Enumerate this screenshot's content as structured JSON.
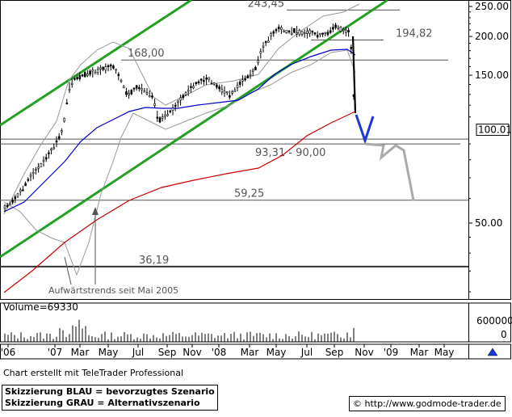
{
  "chart_data": {
    "type": "candlestick",
    "title": "",
    "price_axis": {
      "scale": "log",
      "ticks": [
        {
          "value": 250,
          "label": "250.00"
        },
        {
          "value": 200,
          "label": "200.00"
        },
        {
          "value": 150,
          "label": "150.00"
        },
        {
          "value": 50,
          "label": "50.00"
        }
      ],
      "last_price_label": "100.01",
      "last_price": 100.01
    },
    "time_axis": {
      "labels": [
        "'06",
        "'07",
        "Mar",
        "May",
        "Jul",
        "Sep",
        "Nov",
        "'08",
        "Mar",
        "May",
        "Jul",
        "Sep",
        "Nov",
        "'09",
        "Mar",
        "May"
      ]
    },
    "levels": [
      {
        "label": "243,45",
        "value": 243.45
      },
      {
        "label": "194,82",
        "value": 194.82
      },
      {
        "label": "168,00",
        "value": 168.0
      },
      {
        "label": "93,31 - 90,00",
        "value_high": 93.31,
        "value_low": 90.0
      },
      {
        "label": "59,25",
        "value": 59.25
      },
      {
        "label": "36,19",
        "value": 36.19
      }
    ],
    "annotation": "Aufwärtstrends seit Mai 2005",
    "series": [
      {
        "name": "",
        "kind": "trend-channel",
        "color": "#22a022"
      },
      {
        "name": "",
        "kind": "moving-average-fast",
        "color": "#0000cc"
      },
      {
        "name": "",
        "kind": "moving-average-slow",
        "color": "#cc0000"
      },
      {
        "name": "",
        "kind": "bollinger-bands",
        "color": "#aaaaaa"
      },
      {
        "name": "",
        "kind": "scenario-blue",
        "color": "#1a3ad6"
      },
      {
        "name": "",
        "kind": "scenario-grey",
        "color": "#aaaaaa"
      }
    ],
    "volume": {
      "label": "Volume=69330",
      "ticks": [
        {
          "value": 600000,
          "label": "600000"
        },
        {
          "value": 0,
          "label": "0"
        }
      ]
    }
  },
  "footer": {
    "credit": "Chart erstellt mit TeleTrader Professional",
    "legend_blue": "Skizzierung BLAU = bevorzugtes Szenario",
    "legend_grey": "Skizzierung GRAU = Alternativszenario",
    "url": "© http://www.godmode-trader.de"
  }
}
